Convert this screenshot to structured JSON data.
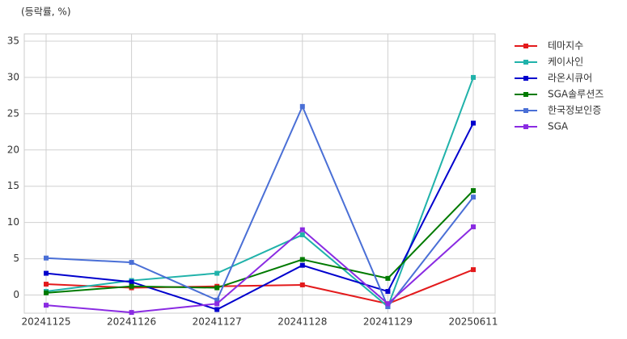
{
  "chart_data": {
    "type": "line",
    "title": "(등락률, %)",
    "categories": [
      "20241125",
      "20241126",
      "20241127",
      "20241128",
      "20241129",
      "20250611"
    ],
    "series": [
      {
        "name": "테마지수",
        "color": "#e31a1c",
        "values": [
          1.5,
          1.0,
          1.2,
          1.4,
          -1.2,
          3.5
        ]
      },
      {
        "name": "케이사인",
        "color": "#20b2aa",
        "values": [
          0.5,
          2.0,
          3.0,
          8.3,
          -1.6,
          30.0
        ]
      },
      {
        "name": "라온시큐어",
        "color": "#0000cd",
        "values": [
          3.0,
          1.8,
          -2.0,
          4.1,
          0.5,
          23.7
        ]
      },
      {
        "name": "SGA솔루션즈",
        "color": "#007a00",
        "values": [
          0.3,
          1.2,
          1.0,
          4.9,
          2.3,
          14.4
        ]
      },
      {
        "name": "한국정보인증",
        "color": "#4a6fd6",
        "values": [
          5.1,
          4.5,
          -0.7,
          26.0,
          -1.6,
          13.5
        ]
      },
      {
        "name": "SGA",
        "color": "#8a2be2",
        "values": [
          -1.4,
          -2.4,
          -1.2,
          9.0,
          -1.2,
          9.4
        ]
      }
    ],
    "ylim": [
      -2.5,
      36
    ],
    "yticks": [
      0,
      5,
      10,
      15,
      20,
      25,
      30,
      35
    ],
    "grid": true,
    "legend": "outside-right"
  }
}
